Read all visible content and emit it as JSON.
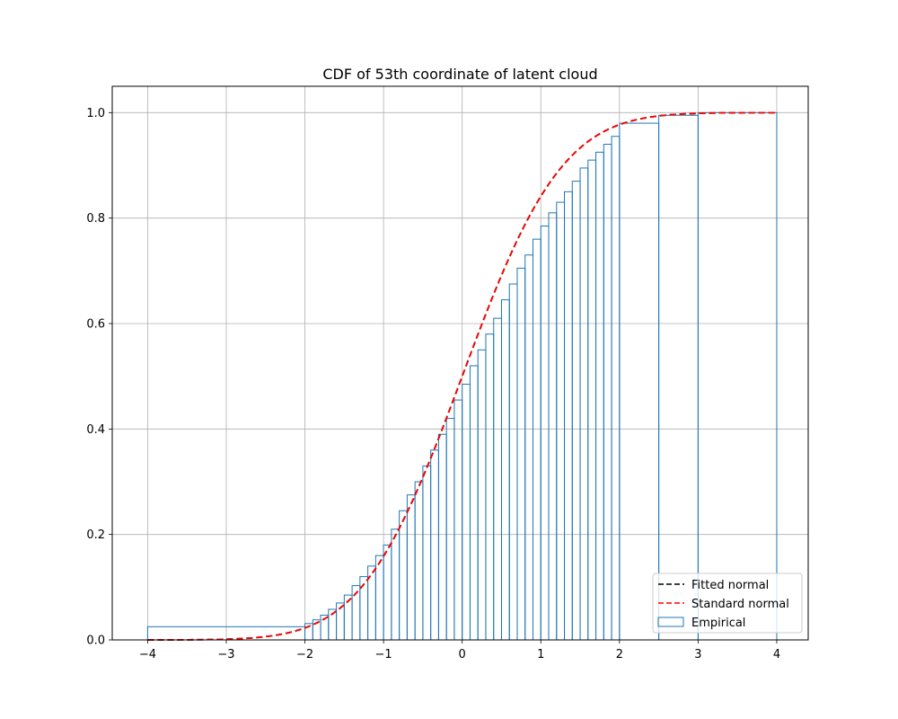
{
  "chart_data": {
    "type": "line",
    "title": "CDF of 53th coordinate of latent cloud",
    "xlabel": "",
    "ylabel": "",
    "xlim": [
      -4.45,
      4.4
    ],
    "ylim": [
      0.0,
      1.05
    ],
    "x_ticks": [
      -4,
      -3,
      -2,
      -1,
      0,
      1,
      2,
      3,
      4
    ],
    "x_tick_labels": [
      "−4",
      "−3",
      "−2",
      "−1",
      "0",
      "1",
      "2",
      "3",
      "4"
    ],
    "y_ticks": [
      0.0,
      0.2,
      0.4,
      0.6,
      0.8,
      1.0
    ],
    "y_tick_labels": [
      "0.0",
      "0.2",
      "0.4",
      "0.6",
      "0.8",
      "1.0"
    ],
    "grid": true,
    "legend_position": "lower-right",
    "series": [
      {
        "name": "Fitted normal",
        "kind": "normal-cdf",
        "mean": 0.0,
        "std": 1.0,
        "x_range": [
          -4.0,
          4.0
        ],
        "color": "#000000",
        "style": "dashed"
      },
      {
        "name": "Standard normal",
        "kind": "normal-cdf",
        "mean": 0.0,
        "std": 1.0,
        "x_range": [
          -4.0,
          4.0
        ],
        "color": "#ff0000",
        "style": "dashed"
      },
      {
        "name": "Empirical",
        "kind": "step-histogram",
        "color": "#1f77b4",
        "style": "step",
        "x": [
          -4.0,
          -2.0,
          -1.9,
          -1.8,
          -1.7,
          -1.6,
          -1.5,
          -1.4,
          -1.3,
          -1.2,
          -1.1,
          -1.0,
          -0.9,
          -0.8,
          -0.7,
          -0.6,
          -0.5,
          -0.4,
          -0.3,
          -0.2,
          -0.1,
          0.0,
          0.1,
          0.2,
          0.3,
          0.4,
          0.5,
          0.6,
          0.7,
          0.8,
          0.9,
          1.0,
          1.1,
          1.2,
          1.3,
          1.4,
          1.5,
          1.6,
          1.7,
          1.8,
          1.9,
          2.0,
          2.5,
          3.0,
          4.0
        ],
        "y": [
          0.0,
          0.025,
          0.031,
          0.038,
          0.047,
          0.058,
          0.07,
          0.085,
          0.103,
          0.12,
          0.14,
          0.16,
          0.18,
          0.21,
          0.245,
          0.275,
          0.3,
          0.33,
          0.36,
          0.39,
          0.42,
          0.455,
          0.485,
          0.52,
          0.55,
          0.58,
          0.61,
          0.645,
          0.675,
          0.705,
          0.73,
          0.76,
          0.785,
          0.81,
          0.83,
          0.85,
          0.87,
          0.895,
          0.91,
          0.925,
          0.94,
          0.955,
          0.98,
          0.995,
          1.0
        ]
      }
    ]
  }
}
